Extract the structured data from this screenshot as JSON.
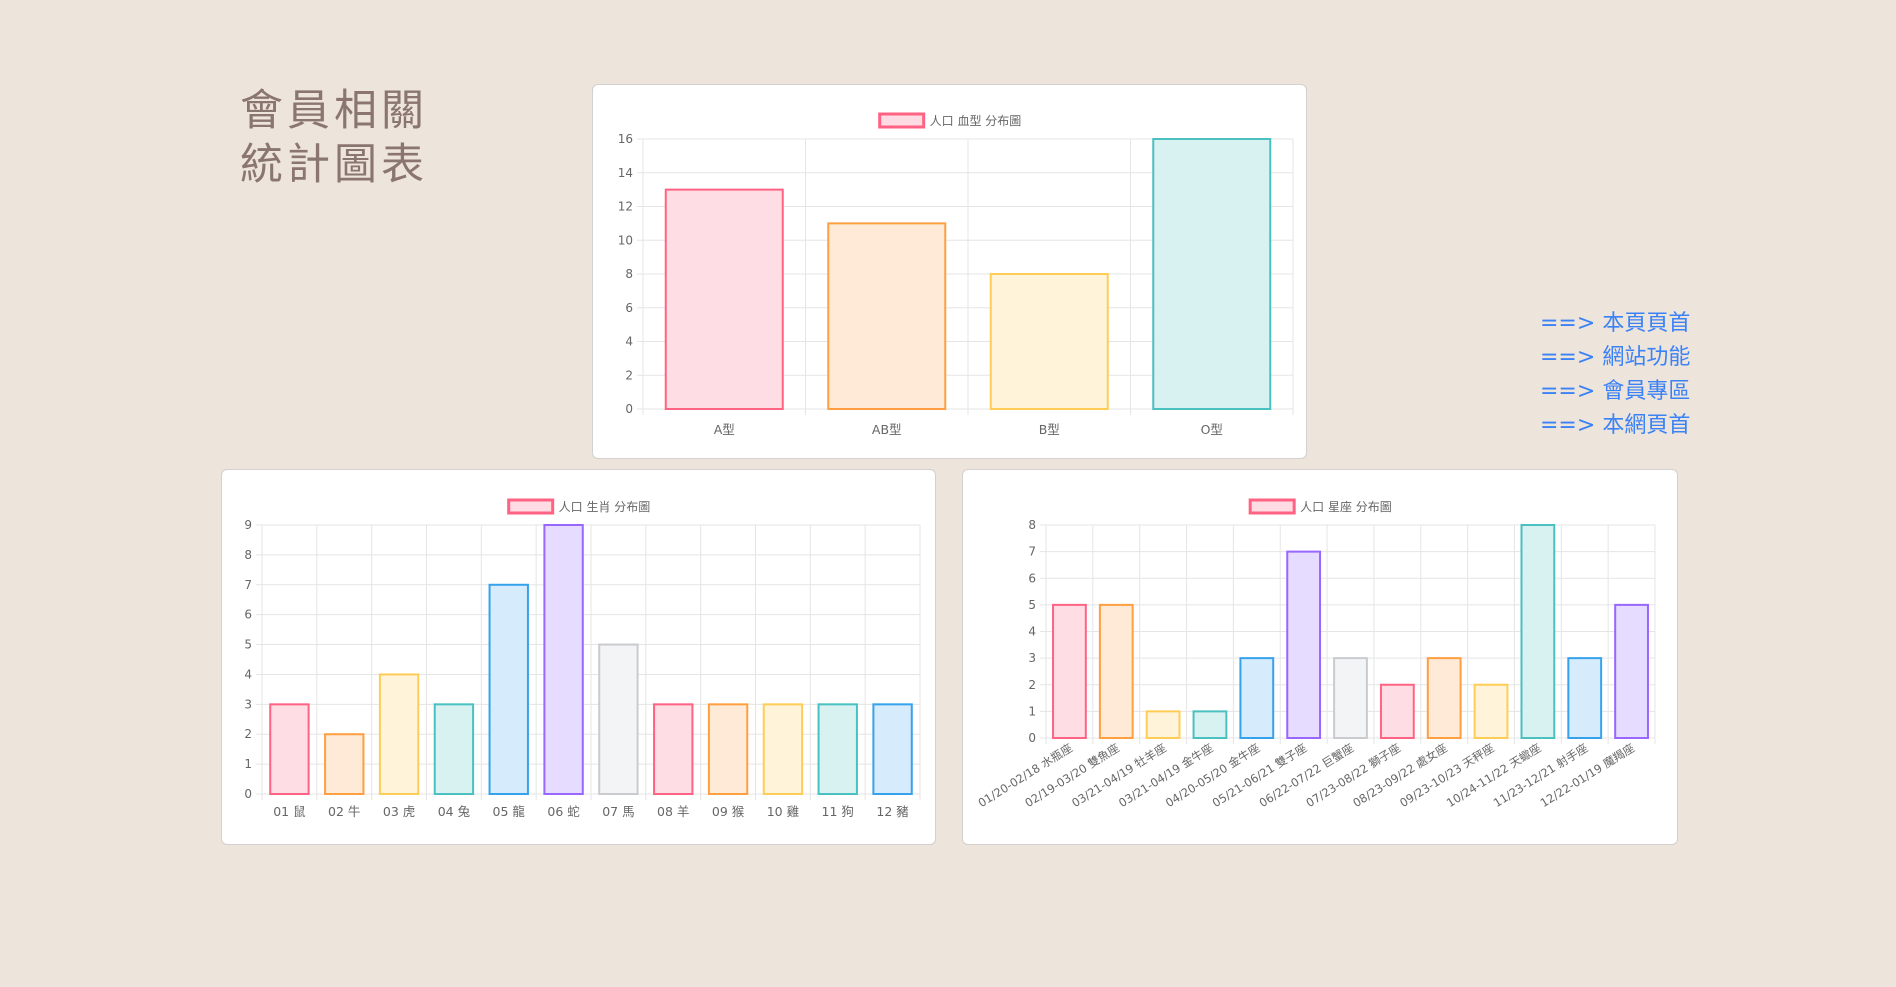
{
  "page": {
    "title_line1": "會員相關",
    "title_line2": "統計圖表"
  },
  "links": [
    {
      "arrow": "==>",
      "label": "本頁頁首"
    },
    {
      "arrow": "==>",
      "label": "網站功能"
    },
    {
      "arrow": "==>",
      "label": "會員專區"
    },
    {
      "arrow": "==>",
      "label": "本網頁首"
    }
  ],
  "legend_swatch": {
    "fill": "#ffdbe3",
    "stroke": "#ff6384"
  },
  "chart_data": [
    {
      "id": "blood",
      "type": "bar",
      "legend": "人口 血型 分布圖",
      "categories": [
        "A型",
        "AB型",
        "B型",
        "O型"
      ],
      "values": [
        13,
        11,
        8,
        16
      ],
      "ylim": [
        0,
        16
      ],
      "ystep": 2,
      "grid": true,
      "legend_position": "top",
      "colors": [
        {
          "fill": "#ffdde5",
          "stroke": "#ff6384"
        },
        {
          "fill": "#ffead7",
          "stroke": "#ff9f40"
        },
        {
          "fill": "#fff4da",
          "stroke": "#ffcd56"
        },
        {
          "fill": "#d8f1f1",
          "stroke": "#4bc0c0"
        }
      ]
    },
    {
      "id": "zodiac",
      "type": "bar",
      "legend": "人口 生肖 分布圖",
      "categories": [
        "01 鼠",
        "02 牛",
        "03 虎",
        "04 兔",
        "05 龍",
        "06 蛇",
        "07 馬",
        "08 羊",
        "09 猴",
        "10 雞",
        "11 狗",
        "12 豬"
      ],
      "values": [
        3,
        2,
        4,
        3,
        7,
        9,
        5,
        3,
        3,
        3,
        3,
        3
      ],
      "ylim": [
        0,
        9
      ],
      "ystep": 1,
      "grid": true,
      "legend_position": "top",
      "colors": [
        {
          "fill": "#ffdde5",
          "stroke": "#ff6384"
        },
        {
          "fill": "#ffead7",
          "stroke": "#ff9f40"
        },
        {
          "fill": "#fff4da",
          "stroke": "#ffcd56"
        },
        {
          "fill": "#d8f1f1",
          "stroke": "#4bc0c0"
        },
        {
          "fill": "#d6ebfb",
          "stroke": "#36a2eb"
        },
        {
          "fill": "#e6dcff",
          "stroke": "#9966ff"
        },
        {
          "fill": "#f3f4f5",
          "stroke": "#c9cbcf"
        }
      ]
    },
    {
      "id": "star",
      "type": "bar",
      "legend": "人口 星座 分布圖",
      "categories": [
        "01/20-02/18 水瓶座",
        "02/19-03/20 雙魚座",
        "03/21-04/19 牡羊座",
        "03/21-04/19 金牛座",
        "04/20-05/20 金牛座",
        "05/21-06/21 雙子座",
        "06/22-07/22 巨蟹座",
        "07/23-08/22 獅子座",
        "08/23-09/22 處女座",
        "09/23-10/23 天秤座",
        "10/24-11/22 天蠍座",
        "11/23-12/21 射手座",
        "12/22-01/19 魔羯座"
      ],
      "values": [
        5,
        5,
        1,
        1,
        3,
        7,
        3,
        2,
        3,
        2,
        8,
        3,
        5
      ],
      "ylim": [
        0,
        8
      ],
      "ystep": 1,
      "grid": true,
      "legend_position": "top",
      "colors": [
        {
          "fill": "#ffdde5",
          "stroke": "#ff6384"
        },
        {
          "fill": "#ffead7",
          "stroke": "#ff9f40"
        },
        {
          "fill": "#fff4da",
          "stroke": "#ffcd56"
        },
        {
          "fill": "#d8f1f1",
          "stroke": "#4bc0c0"
        },
        {
          "fill": "#d6ebfb",
          "stroke": "#36a2eb"
        },
        {
          "fill": "#e6dcff",
          "stroke": "#9966ff"
        },
        {
          "fill": "#f3f4f5",
          "stroke": "#c9cbcf"
        }
      ]
    }
  ]
}
